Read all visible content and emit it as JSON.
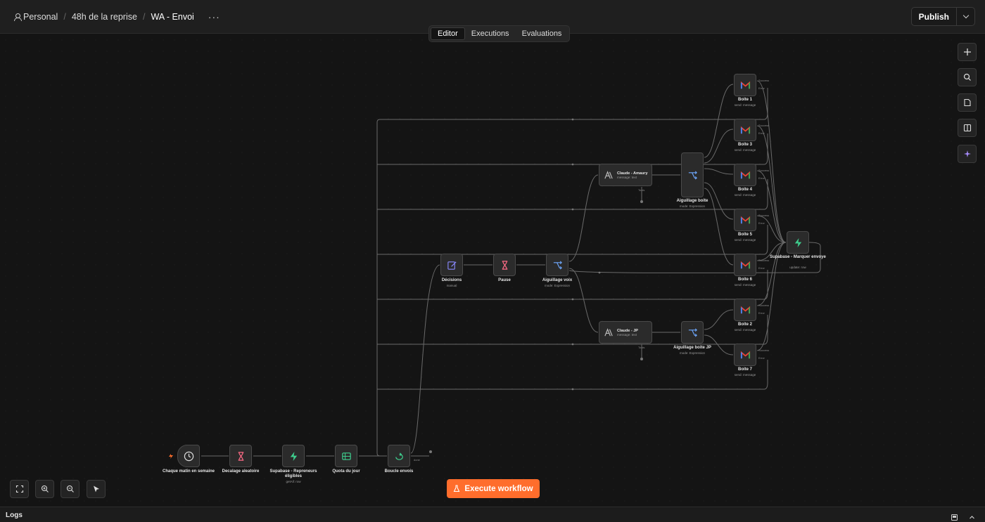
{
  "breadcrumb": {
    "user": "Personal",
    "folder": "48h de la reprise",
    "workflow": "WA - Envoi",
    "more": "···"
  },
  "header": {
    "publish_label": "Publish"
  },
  "tabs": [
    {
      "label": "Editor"
    },
    {
      "label": "Executions"
    },
    {
      "label": "Evaluations"
    }
  ],
  "nodes": {
    "trigger": {
      "label": "Chaque matin en semaine"
    },
    "decalage": {
      "label": "Decalage aleatoire"
    },
    "supabase_rep": {
      "label": "Supabase - Repreneurs éligibles",
      "sub": "getAll: row"
    },
    "quota": {
      "label": "Quota du jour"
    },
    "boucle": {
      "label": "Boucle envois",
      "out_done": "done"
    },
    "decisions": {
      "label": "Décisions",
      "sub": "manual"
    },
    "pause": {
      "label": "Pause"
    },
    "aiguillage_voix": {
      "label": "Aiguillage voix",
      "sub": "mode: Expression"
    },
    "claude_amaury": {
      "label": "Claude - Amaury",
      "sub": "message: text",
      "out": "Tools"
    },
    "claude_jp": {
      "label": "Claude - JP",
      "sub": "message: text",
      "out": "Tools"
    },
    "aiguillage_boite": {
      "label": "Aiguillage boite",
      "sub": "mode: Expression"
    },
    "aiguillage_boite_jp": {
      "label": "Aiguillage boite JP",
      "sub": "mode: Expression"
    },
    "boite1": {
      "label": "Boite 1",
      "sub": "send: message"
    },
    "boite3": {
      "label": "Boite 3",
      "sub": "send: message"
    },
    "boite4": {
      "label": "Boite 4",
      "sub": "send: message"
    },
    "boite5": {
      "label": "Boite 5",
      "sub": "send: message"
    },
    "boite6": {
      "label": "Boite 6",
      "sub": "send: message"
    },
    "boite2": {
      "label": "Boite 2",
      "sub": "send: message"
    },
    "boite7": {
      "label": "Boite 7",
      "sub": "send: message"
    },
    "supabase_marquer": {
      "label": "Supabase - Marquer envoye",
      "sub": "update: row"
    }
  },
  "outputs": {
    "success": "Success",
    "error": "Error"
  },
  "execute_label": "Execute workflow",
  "logs_label": "Logs",
  "colors": {
    "accent": "#ff6d2c",
    "supabase": "#3ecf8e",
    "wait": "#ff6b86",
    "switch": "#6ea8fe"
  }
}
